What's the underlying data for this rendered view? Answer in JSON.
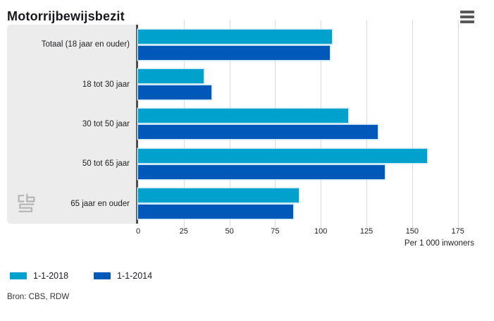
{
  "header": {
    "title": "Motorrijbewijsbezit",
    "menu_icon": "hamburger-menu"
  },
  "chart_data": {
    "type": "bar",
    "orientation": "horizontal",
    "title": "Motorrijbewijsbezit",
    "categories": [
      "Totaal (18 jaar en ouder)",
      "18 tot 30 jaar",
      "30 tot 50 jaar",
      "50 tot 65 jaar",
      "65 jaar en ouder"
    ],
    "series": [
      {
        "name": "1-1-2018",
        "color": "#00a1cd",
        "values": [
          106,
          36,
          115,
          158,
          88
        ]
      },
      {
        "name": "1-1-2014",
        "color": "#0058b8",
        "values": [
          105,
          40,
          131,
          135,
          85
        ]
      }
    ],
    "ticks": [
      0,
      25,
      50,
      75,
      100,
      125,
      150,
      175
    ],
    "xlim": [
      0,
      184
    ],
    "xlabel": "Per 1 000 inwoners",
    "grid": true,
    "legend_position": "bottom"
  },
  "source": "Bron: CBS, RDW",
  "branding": {
    "logo": "cbs-logo"
  },
  "colors": {
    "series_2018": "#00a1cd",
    "series_2014": "#0058b8",
    "panel_bg": "#ececec",
    "gridline": "#d9d9d9",
    "axis_line": "#4d4d4d",
    "bar_outline": "#c9e8f5",
    "menu_icon": "#58595b",
    "logo_gray": "#b4b4b4",
    "text": "#222222"
  }
}
